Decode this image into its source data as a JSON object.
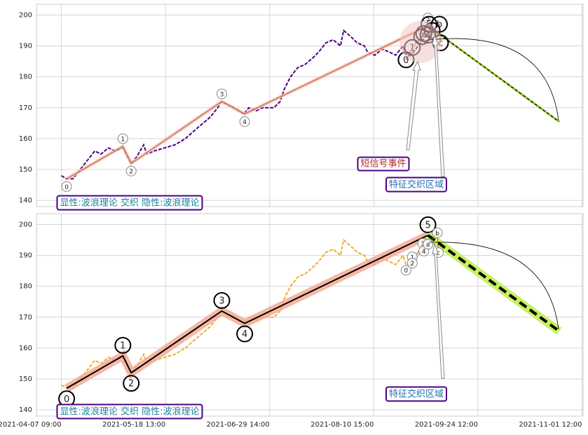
{
  "chart_data": [
    {
      "type": "line",
      "xlim": [
        -24,
        501
      ],
      "ylim": [
        138,
        203.5
      ],
      "yticks": [
        140,
        150,
        160,
        170,
        180,
        190,
        200
      ],
      "xticks": [
        0,
        100,
        200,
        300,
        400,
        500
      ],
      "show_xtick_labels": false,
      "grid": true,
      "series": [
        {
          "kind": "price",
          "color": "#4b0082",
          "style": "dashed",
          "x": [
            0,
            5,
            11,
            18,
            25,
            32,
            38,
            45,
            52,
            59,
            62,
            67,
            72,
            79,
            82,
            89,
            99,
            109,
            119,
            129,
            136,
            143,
            150,
            154,
            160,
            166,
            175,
            180,
            187,
            193,
            204,
            210,
            214,
            220,
            227,
            234,
            241,
            247,
            254,
            261,
            268,
            271,
            278,
            284,
            291,
            294,
            301,
            308,
            315,
            321,
            328,
            332,
            338,
            345,
            352,
            355,
            358
          ],
          "values": [
            148,
            147,
            147,
            150,
            153,
            156,
            155,
            157,
            156,
            157,
            155,
            152,
            154,
            158,
            155,
            156,
            157,
            158,
            160,
            163,
            165,
            167,
            170,
            172,
            171,
            170,
            168,
            170,
            169,
            170,
            170,
            172,
            176,
            180,
            183,
            184,
            186,
            188,
            191,
            192,
            190,
            195,
            193,
            191,
            190,
            188,
            187,
            189,
            188,
            187,
            190,
            186,
            188,
            191,
            194,
            196,
            194
          ]
        },
        {
          "kind": "wave",
          "color": "#b5523b",
          "glow": "#f6c2b0",
          "marker": "small",
          "placement": "beside",
          "x": [
            5,
            59,
            67,
            154,
            176,
            352
          ],
          "values": [
            147,
            157.5,
            152,
            172,
            168,
            196.5
          ],
          "point_labels": [
            "0",
            "1",
            "2",
            "3",
            "4",
            "5"
          ]
        },
        {
          "kind": "projection",
          "color": "#000000",
          "glow": "#9acd32",
          "x": [
            352,
            478
          ],
          "values": [
            196.5,
            165.5
          ]
        },
        {
          "kind": "subwave",
          "color": "#b5523b",
          "marker": "large",
          "placement": "on",
          "x": [
            331,
            337,
            346,
            348,
            352,
            353,
            356,
            363,
            364
          ],
          "values": [
            185.5,
            189.5,
            193,
            194,
            193.5,
            197,
            195,
            197,
            191
          ],
          "point_labels": [
            "0",
            "1",
            "2",
            "3",
            "4",
            "5",
            "a",
            "b",
            "c"
          ]
        }
      ],
      "annotations": [
        "短信号事件",
        "特征交织区域",
        "显性:波浪理论 交织 隐性:波浪理论"
      ]
    },
    {
      "type": "line",
      "xlim": [
        -24,
        501
      ],
      "ylim": [
        138,
        203.5
      ],
      "yticks": [
        140,
        150,
        160,
        170,
        180,
        190,
        200
      ],
      "xticks": [
        {
          "value": 0,
          "label": "2021-04-07 09:00"
        },
        {
          "value": 100,
          "label": "2021-05-18 13:00"
        },
        {
          "value": 200,
          "label": "2021-06-29 14:00"
        },
        {
          "value": 300,
          "label": "2021-08-10 15:00"
        },
        {
          "value": 400,
          "label": "2021-09-24 12:00"
        },
        {
          "value": 500,
          "label": "2021-11-01 12:00"
        }
      ],
      "show_xtick_labels": true,
      "grid": true,
      "series": [
        {
          "kind": "price",
          "color": "#f0b030",
          "style": "dashed",
          "x": [
            0,
            5,
            11,
            18,
            25,
            32,
            38,
            45,
            52,
            59,
            62,
            67,
            72,
            79,
            82,
            89,
            99,
            109,
            119,
            129,
            136,
            143,
            150,
            154,
            160,
            166,
            175,
            180,
            187,
            193,
            204,
            210,
            214,
            220,
            227,
            234,
            241,
            247,
            254,
            261,
            268,
            271,
            278,
            284,
            291,
            294,
            301,
            308,
            315,
            321,
            328,
            332,
            338,
            345,
            352,
            355,
            358
          ],
          "values": [
            148,
            147,
            147,
            150,
            153,
            156,
            155,
            157,
            156,
            157,
            155,
            152,
            154,
            158,
            155,
            156,
            157,
            158,
            160,
            163,
            165,
            167,
            170,
            172,
            171,
            170,
            168,
            170,
            169,
            170,
            170,
            172,
            176,
            180,
            183,
            184,
            186,
            188,
            191,
            192,
            190,
            195,
            193,
            191,
            190,
            188,
            187,
            189,
            188,
            187,
            190,
            186,
            188,
            191,
            194,
            196,
            194
          ]
        },
        {
          "kind": "wave",
          "color": "#000000",
          "glow": "#f4a58f",
          "marker": "large",
          "placement": "beside",
          "x": [
            5,
            59,
            67,
            154,
            176,
            352
          ],
          "values": [
            147,
            157.5,
            152,
            172,
            168,
            196.5
          ],
          "point_labels": [
            "0",
            "1",
            "2",
            "3",
            "4",
            "5"
          ]
        },
        {
          "kind": "projection",
          "color": "#000000",
          "glow": "#c8f060",
          "x": [
            352,
            478
          ],
          "values": [
            196.5,
            165.5
          ]
        },
        {
          "kind": "subwave",
          "color": "#b5523b",
          "marker": "small",
          "placement": "on",
          "x": [
            331,
            337,
            337,
            347,
            348,
            352,
            361,
            362
          ],
          "values": [
            185.2,
            189.5,
            187.5,
            193.9,
            191.4,
            193.6,
            197.3,
            190.9
          ],
          "point_labels": [
            "0",
            "1",
            "2",
            "3",
            "4",
            "a",
            "b",
            "c"
          ]
        }
      ],
      "annotations": [
        "特征交织区域",
        "显性:波浪理论 交织 隐性:波浪理论"
      ]
    }
  ]
}
